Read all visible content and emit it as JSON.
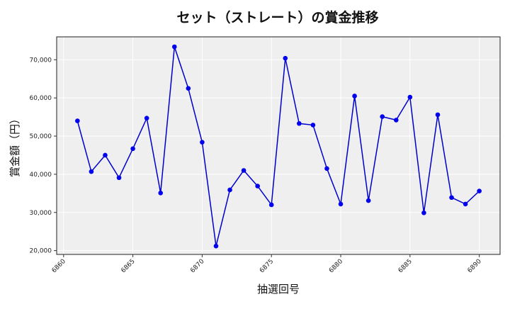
{
  "chart_data": {
    "type": "line",
    "title": "セット（ストレート）の賞金推移",
    "xlabel": "抽選回号",
    "ylabel": "賞金額（円）",
    "xlim": [
      6859.5,
      6891.5
    ],
    "ylim": [
      19000,
      76000
    ],
    "x_ticks": [
      6860,
      6865,
      6870,
      6875,
      6880,
      6885,
      6890
    ],
    "y_ticks": [
      20000,
      30000,
      40000,
      50000,
      60000,
      70000
    ],
    "y_tick_labels": [
      "20,000",
      "30,000",
      "40,000",
      "50,000",
      "60,000",
      "70,000"
    ],
    "grid": true,
    "line_color": "#0000cc",
    "marker_color": "#0000ee",
    "background_color": "#efefef",
    "series": [
      {
        "x": [
          6861,
          6862,
          6863,
          6864,
          6865,
          6866,
          6867,
          6868,
          6869,
          6870,
          6871,
          6872,
          6873,
          6874,
          6875,
          6876,
          6877,
          6878,
          6879,
          6880,
          6881,
          6882,
          6883,
          6884,
          6885,
          6886,
          6887,
          6888,
          6889,
          6890
        ],
        "values": [
          54000,
          40700,
          45000,
          39100,
          46700,
          54700,
          35100,
          73400,
          62500,
          48400,
          21200,
          35900,
          41000,
          36900,
          32000,
          70400,
          53300,
          52900,
          41500,
          32200,
          60500,
          33100,
          55100,
          54200,
          60200,
          29900,
          55600,
          33900,
          32200,
          35600
        ]
      }
    ]
  }
}
